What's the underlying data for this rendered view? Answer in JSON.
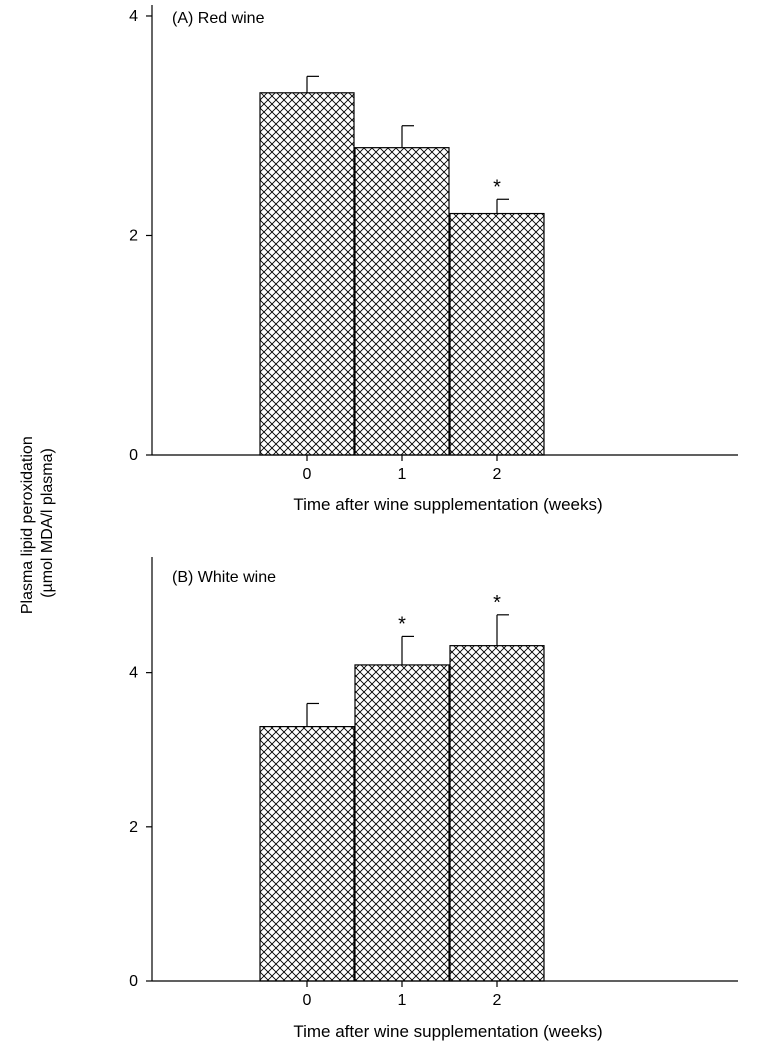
{
  "figure": {
    "ylabel_line1": "Plasma lipid peroxidation",
    "ylabel_line2": "(µmol MDA/l plasma)",
    "colors": {
      "ink": "#000000",
      "background": "#ffffff",
      "bar_fill": "hatched-crosshatch"
    }
  },
  "chart_data": [
    {
      "type": "bar",
      "title": "(A) Red wine",
      "xlabel": "Time after wine supplementation (weeks)",
      "ylabel": "Plasma lipid peroxidation (µmol MDA/l plasma)",
      "categories": [
        "0",
        "1",
        "2"
      ],
      "values": [
        3.3,
        2.8,
        2.2
      ],
      "errors": [
        0.15,
        0.2,
        0.13
      ],
      "significance": [
        "",
        "",
        "*"
      ],
      "yticks": [
        0,
        2,
        4
      ],
      "ytick_labels": [
        "0",
        "2",
        "4"
      ],
      "ylim": [
        0,
        4.1
      ],
      "grid": false,
      "legend": "none"
    },
    {
      "type": "bar",
      "title": "(B) White wine",
      "xlabel": "Time after wine supplementation (weeks)",
      "ylabel": "Plasma lipid peroxidation (µmol MDA/l plasma)",
      "categories": [
        "0",
        "1",
        "2"
      ],
      "values": [
        3.3,
        4.1,
        4.35
      ],
      "errors": [
        0.3,
        0.37,
        0.4
      ],
      "significance": [
        "",
        "*",
        "*"
      ],
      "yticks": [
        0,
        2,
        4
      ],
      "ytick_labels": [
        "0",
        "2",
        "4"
      ],
      "ylim": [
        0,
        5.5
      ],
      "grid": false,
      "legend": "none"
    }
  ]
}
